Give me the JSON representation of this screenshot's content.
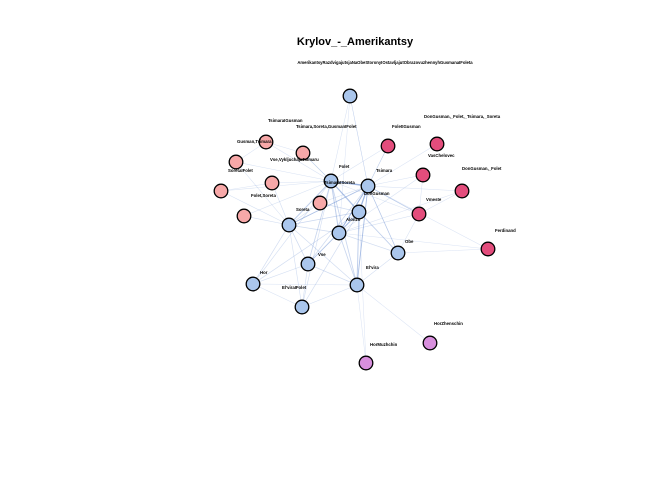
{
  "title": "Krylov_-_Amerikantsy",
  "subtitle": "AmerikantsyRazdvigajutsjaNaObeStoronyIOstavljajutObrazovuzhennyhGusmanaIFoleta",
  "colors": {
    "edge": "#7a9bd6",
    "group_blue": "#aac6ec",
    "group_pink": "#f7a8a8",
    "group_magenta": "#e34d7c",
    "group_purple": "#d88fdd",
    "node_border": "#000000",
    "background": "#ffffff"
  },
  "nodes": [
    {
      "id": "top",
      "label": "",
      "group": "blue"
    },
    {
      "id": "DonGusman_Folet_Tsimara_Soreta",
      "label": "DonGusman,_Folet,_Tsimara,_Soreta",
      "group": "magenta"
    },
    {
      "id": "FoletIGusman",
      "label": "FoletIGusman",
      "group": "magenta"
    },
    {
      "id": "TsimaraIGusman",
      "label": "TsimaraIGusman",
      "group": "pink"
    },
    {
      "id": "Tsimara_Soreta_GusmanIFolet",
      "label": "Tsimara,Soreta,GusmanIFolet",
      "group": "pink"
    },
    {
      "id": "Gusman_Tsimara",
      "label": "Gusman,Tsimara",
      "group": "pink"
    },
    {
      "id": "Vse_VykljuchajaTsimaru",
      "label": "Vse,VykljuchajaTsimaru",
      "group": "pink"
    },
    {
      "id": "SoretaIFolet",
      "label": "SoretaIFolet",
      "group": "pink"
    },
    {
      "id": "anon_pink_left",
      "label": "",
      "group": "pink"
    },
    {
      "id": "Folet_Soreta",
      "label": "Folet,Soreta",
      "group": "pink"
    },
    {
      "id": "anon_pink_bottom",
      "label": "",
      "group": "pink"
    },
    {
      "id": "Folet",
      "label": "Folet",
      "group": "blue"
    },
    {
      "id": "TsimaraISoreta",
      "label": "TsimaraISoreta",
      "group": "blue"
    },
    {
      "id": "Tsimara",
      "label": "Tsimara",
      "group": "blue"
    },
    {
      "id": "DonGusman",
      "label": "DonGusman",
      "group": "blue"
    },
    {
      "id": "VasChelovec",
      "label": "VasChelovec",
      "group": "magenta"
    },
    {
      "id": "DonGusman_Folet",
      "label": "DonGusman,_Folet",
      "group": "magenta"
    },
    {
      "id": "Vmeste",
      "label": "Vmeste",
      "group": "magenta"
    },
    {
      "id": "Soreta",
      "label": "Soreta",
      "group": "blue"
    },
    {
      "id": "anon_pink_center",
      "label": "",
      "group": "pink"
    },
    {
      "id": "Alonzo",
      "label": "Alonzo",
      "group": "blue"
    },
    {
      "id": "center_blue",
      "label": "",
      "group": "blue"
    },
    {
      "id": "Obe",
      "label": "Obe",
      "group": "blue"
    },
    {
      "id": "Vse",
      "label": "Vse",
      "group": "blue"
    },
    {
      "id": "Elvira",
      "label": "El'vira",
      "group": "blue"
    },
    {
      "id": "Hor",
      "label": "Hor",
      "group": "blue"
    },
    {
      "id": "ElviraIFolet",
      "label": "El'viraIFolet",
      "group": "blue"
    },
    {
      "id": "Ferdinand",
      "label": "Ferdinand",
      "group": "magenta"
    },
    {
      "id": "HorZhenschin",
      "label": "HorZhenschin",
      "group": "purple"
    },
    {
      "id": "HorMuzhchin",
      "label": "HorMuzhchin",
      "group": "purple"
    }
  ],
  "edges": [
    [
      "TsimaraISoreta",
      "Tsimara",
      3
    ],
    [
      "TsimaraISoreta",
      "DonGusman",
      2
    ],
    [
      "TsimaraISoreta",
      "Alonzo",
      2.5
    ],
    [
      "TsimaraISoreta",
      "Soreta",
      2
    ],
    [
      "TsimaraISoreta",
      "center_blue",
      2
    ],
    [
      "TsimaraISoreta",
      "Vse",
      1.5
    ],
    [
      "TsimaraISoreta",
      "Elvira",
      1.5
    ],
    [
      "TsimaraISoreta",
      "top",
      0.6
    ],
    [
      "TsimaraISoreta",
      "Gusman_Tsimara",
      0.6
    ],
    [
      "TsimaraISoreta",
      "Vse_VykljuchajaTsimaru",
      0.6
    ],
    [
      "TsimaraISoreta",
      "SoretaIFolet",
      0.6
    ],
    [
      "TsimaraISoreta",
      "anon_pink_left",
      0.6
    ],
    [
      "TsimaraISoreta",
      "Folet_Soreta",
      0.6
    ],
    [
      "TsimaraISoreta",
      "anon_pink_bottom",
      0.6
    ],
    [
      "TsimaraISoreta",
      "Tsimara_Soreta_GusmanIFolet",
      0.6
    ],
    [
      "TsimaraISoreta",
      "Hor",
      0.8
    ],
    [
      "TsimaraISoreta",
      "ElviraIFolet",
      0.8
    ],
    [
      "TsimaraISoreta",
      "Obe",
      0.8
    ],
    [
      "TsimaraISoreta",
      "FoletIGusman",
      0.6
    ],
    [
      "TsimaraISoreta",
      "Vmeste",
      0.6
    ],
    [
      "Tsimara",
      "DonGusman",
      2
    ],
    [
      "Tsimara",
      "Alonzo",
      2.5
    ],
    [
      "Tsimara",
      "center_blue",
      2
    ],
    [
      "Tsimara",
      "Soreta",
      1.5
    ],
    [
      "Tsimara",
      "Elvira",
      1.5
    ],
    [
      "Tsimara",
      "Vse",
      1.2
    ],
    [
      "Tsimara",
      "Obe",
      1
    ],
    [
      "Tsimara",
      "FoletIGusman",
      0.6
    ],
    [
      "Tsimara",
      "VasChelovec",
      0.6
    ],
    [
      "Tsimara",
      "Vmeste",
      0.8
    ],
    [
      "Tsimara",
      "DonGusman_Folet",
      0.5
    ],
    [
      "Tsimara",
      "anon_pink_center",
      0.8
    ],
    [
      "Tsimara",
      "top",
      0.5
    ],
    [
      "DonGusman",
      "Alonzo",
      2
    ],
    [
      "DonGusman",
      "center_blue",
      2
    ],
    [
      "DonGusman",
      "Soreta",
      1.2
    ],
    [
      "DonGusman",
      "Elvira",
      1.5
    ],
    [
      "DonGusman",
      "Obe",
      1
    ],
    [
      "DonGusman",
      "Vmeste",
      0.8
    ],
    [
      "DonGusman",
      "FoletIGusman",
      0.6
    ],
    [
      "DonGusman",
      "DonGusman_Folet_Tsimara_Soreta",
      0.5
    ],
    [
      "DonGusman",
      "Ferdinand",
      0.5
    ],
    [
      "Alonzo",
      "Soreta",
      1.5
    ],
    [
      "Alonzo",
      "center_blue",
      2
    ],
    [
      "Alonzo",
      "Vse",
      1.5
    ],
    [
      "Alonzo",
      "Elvira",
      2
    ],
    [
      "Alonzo",
      "Hor",
      1
    ],
    [
      "Alonzo",
      "ElviraIFolet",
      1
    ],
    [
      "Alonzo",
      "Obe",
      1
    ],
    [
      "Alonzo",
      "anon_pink_center",
      1
    ],
    [
      "Alonzo",
      "HorMuzhchin",
      0.5
    ],
    [
      "center_blue",
      "Soreta",
      1.2
    ],
    [
      "center_blue",
      "Elvira",
      1.5
    ],
    [
      "center_blue",
      "Obe",
      1
    ],
    [
      "center_blue",
      "Vmeste",
      0.8
    ],
    [
      "center_blue",
      "Vse",
      1
    ],
    [
      "center_blue",
      "Ferdinand",
      0.5
    ],
    [
      "center_blue",
      "DonGusman_Folet",
      0.5
    ],
    [
      "center_blue",
      "VasChelovec",
      0.6
    ],
    [
      "Soreta",
      "Vse",
      1.2
    ],
    [
      "Soreta",
      "Hor",
      1
    ],
    [
      "Soreta",
      "Folet_Soreta",
      0.8
    ],
    [
      "Soreta",
      "anon_pink_bottom",
      0.8
    ],
    [
      "Soreta",
      "SoretaIFolet",
      0.6
    ],
    [
      "Soreta",
      "anon_pink_left",
      0.6
    ],
    [
      "Soreta",
      "Elvira",
      1
    ],
    [
      "Soreta",
      "ElviraIFolet",
      0.8
    ],
    [
      "Soreta",
      "anon_pink_center",
      0.8
    ],
    [
      "Vse",
      "Hor",
      0.8
    ],
    [
      "Vse",
      "Elvira",
      1
    ],
    [
      "Vse",
      "ElviraIFolet",
      0.8
    ],
    [
      "Elvira",
      "ElviraIFolet",
      0.8
    ],
    [
      "Elvira",
      "Obe",
      0.8
    ],
    [
      "Elvira",
      "HorZhenschin",
      0.5
    ],
    [
      "Elvira",
      "HorMuzhchin",
      0.5
    ],
    [
      "Hor",
      "ElviraIFolet",
      0.6
    ],
    [
      "Hor",
      "Elvira",
      0.6
    ],
    [
      "Obe",
      "Vmeste",
      0.6
    ],
    [
      "Obe",
      "Ferdinand",
      0.5
    ],
    [
      "top",
      "center_blue",
      0.5
    ],
    [
      "top",
      "DonGusman",
      0.5
    ],
    [
      "Gusman_Tsimara",
      "Vse_VykljuchajaTsimaru",
      0.5
    ],
    [
      "Gusman_Tsimara",
      "SoretaIFolet",
      0.5
    ],
    [
      "anon_pink_left",
      "Folet_Soreta",
      0.5
    ],
    [
      "Tsimara_Soreta_GusmanIFolet",
      "Vse_VykljuchajaTsimaru",
      0.5
    ],
    [
      "Vmeste",
      "VasChelovec",
      0.5
    ],
    [
      "DonGusman_Folet",
      "Vmeste",
      0.5
    ]
  ]
}
